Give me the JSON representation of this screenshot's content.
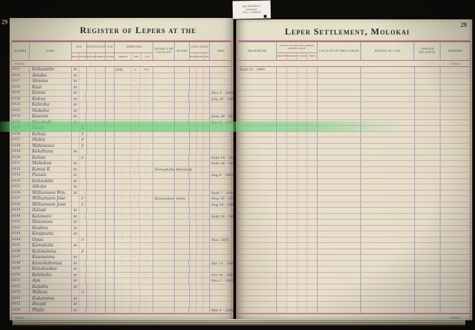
{
  "photo": {
    "left_page_number": "29",
    "right_page_number": "29",
    "archive_tab": {
      "lines": [
        "288 HANSEN'S",
        "DISEASE",
        "VOL. 2 SERIES"
      ]
    }
  },
  "colors": {
    "page_cream": "#e3decb",
    "rule_magenta": "#b34a78",
    "rule_pink": "#c96b86",
    "rule_blue": "#9a97c4",
    "ink": "#41445a",
    "stamp_blue": "#5c68a2",
    "highlight_green": "#60cd76"
  },
  "left_page": {
    "title": "Register of Lepers at the",
    "total_label": "TOTAL",
    "header": {
      "number": "NUMBER",
      "name": "NAME",
      "sex_label": "SEX",
      "sex_subs": [
        "MALE",
        "FEMALE"
      ],
      "nationality_label": "NATIONALITY",
      "nationality_subs": [
        "HAWAIIAN",
        "FOREIGNER"
      ],
      "age_label": "AGE",
      "age_subs": [
        "YEARS"
      ],
      "admitted_label": "ADMITTED",
      "admitted_subs": [
        "MONTH",
        "DAY",
        "A.D."
      ],
      "district": "DISTRICT OR LOCALITY",
      "island": "ISLAND",
      "civil_label": "CIVIL STATE",
      "civil_subs": [
        "MARRIED",
        "UNMARRIED",
        "NOT KNOWN"
      ],
      "died": "DIED"
    },
    "rows": [
      [
        "6115",
        "Kahaulelio",
        "M",
        "July",
        "22",
        "1891",
        "",
        "",
        ""
      ],
      [
        "6116",
        "Amaka",
        "M",
        "″",
        "″",
        "″",
        "",
        "",
        ""
      ],
      [
        "6117",
        "Simona",
        "M",
        "″",
        "″",
        "″",
        "",
        "",
        ""
      ],
      [
        "6118",
        "Kaai",
        "M",
        "″",
        "″",
        "″",
        "",
        "",
        ""
      ],
      [
        "6119",
        "Kamia",
        "M",
        "″",
        "″",
        "″",
        "",
        "",
        "Nov 5 - 1891"
      ],
      [
        "6120",
        "Kukua",
        "M",
        "″",
        "″",
        "″",
        "",
        "",
        "July 16 - 1891"
      ],
      [
        "6121",
        "Kaleoha",
        "M",
        "″",
        "″",
        "″",
        "",
        "",
        ""
      ],
      [
        "6122",
        "Makaha",
        "M",
        "″",
        "″",
        "″",
        "",
        "",
        ""
      ],
      [
        "6123",
        "Kaumai",
        "M",
        "″",
        "″",
        "″",
        "",
        "",
        "June 30 - 1891"
      ],
      [
        "6124",
        "Kauakahi",
        "M",
        "″",
        "″",
        "″",
        "",
        "",
        "Nov 6 - 1892"
      ],
      [
        "6125",
        "Nepii",
        "F",
        "″",
        "″",
        "″",
        "",
        "",
        ""
      ],
      [
        "6126",
        "Kahua",
        "F",
        "″",
        "″",
        "″",
        "",
        "",
        ""
      ],
      [
        "6127",
        "Makia",
        "F",
        "″",
        "″",
        "″",
        "",
        "",
        ""
      ],
      [
        "6128",
        "Wahinenui",
        "F",
        "″",
        "″",
        "″",
        "",
        "",
        ""
      ],
      [
        "6129",
        "Kekahuna",
        "M",
        "″",
        "″",
        "″",
        "",
        "",
        ""
      ],
      [
        "6130",
        "Kaluia",
        "F",
        "″",
        "″",
        "″",
        "",
        "",
        "Sept 14 - 1891"
      ],
      [
        "6131",
        "Makekau",
        "M",
        "″",
        "″",
        "″",
        "",
        "",
        "Sept 26 - 1891"
      ],
      [
        "6132",
        "Kamai K.",
        "M",
        "″",
        "″",
        "″",
        "Honuakaha",
        "Honolulu",
        ""
      ],
      [
        "6133",
        "Puaala",
        "M",
        "″",
        "″",
        "″",
        "",
        "",
        "Aug 9 - 1891"
      ],
      [
        "6134",
        "Kahoukiki",
        "M",
        "″",
        "″",
        "″",
        "",
        "",
        ""
      ],
      [
        "6135",
        "Aikake",
        "M",
        "″",
        "″",
        "″",
        "",
        "",
        ""
      ],
      [
        "6136",
        "Williamson Wm.",
        "M",
        "″",
        "″",
        "″",
        "",
        "",
        "Sept 7 - 1891"
      ],
      [
        "6137",
        "Williamson Jose",
        "F",
        "″",
        "″",
        "″",
        "Kawaiahao",
        "Oahu",
        "May 18 - 1889"
      ],
      [
        "6138",
        "Williamson Jane",
        "F",
        "″",
        "″",
        "″",
        "",
        "",
        "Aug 14 - 1891"
      ],
      [
        "6139",
        "Halapi",
        "M",
        "″",
        "″",
        "″",
        "",
        "",
        ""
      ],
      [
        "6140",
        "Kalawaia",
        "M",
        "″",
        "″",
        "″",
        "",
        "",
        "Sept 28 - 1891"
      ],
      [
        "6141",
        "Maunawa",
        "M",
        "″",
        "″",
        "″",
        "",
        "",
        ""
      ],
      [
        "6142",
        "Kaahea",
        "M",
        "″",
        "″",
        "″",
        "",
        "",
        ""
      ],
      [
        "6143",
        "Kaupauna",
        "M",
        "″",
        "″",
        "″",
        "",
        "",
        ""
      ],
      [
        "6144",
        "Opua",
        "F",
        "″",
        "″",
        "″",
        "",
        "",
        "Nov. 1891"
      ],
      [
        "6145",
        "Kamahala",
        "M",
        "″",
        "″",
        "″",
        "",
        "",
        ""
      ],
      [
        "6146",
        "Kahinahina",
        "F",
        "″",
        "″",
        "″",
        "",
        "",
        ""
      ],
      [
        "6147",
        "Kaumauna",
        "M",
        "″",
        "″",
        "″",
        "",
        "",
        ""
      ],
      [
        "6148",
        "Kamakahonua",
        "M",
        "″",
        "″",
        "″",
        "",
        "",
        "Apr 13 - 1893"
      ],
      [
        "6149",
        "Kanakaokai",
        "M",
        "″",
        "″",
        "″",
        "",
        "",
        ""
      ],
      [
        "6150",
        "Kelekolio",
        "M",
        "″",
        "″",
        "″",
        "",
        "",
        "Oct 16 - 1892"
      ],
      [
        "6151",
        "Apa",
        "M",
        "″",
        "″",
        "″",
        "",
        "",
        "Nov 2 - 1892"
      ],
      [
        "6152",
        "Kapahu",
        "M",
        "″",
        "″",
        "″",
        "",
        "",
        ""
      ],
      [
        "6153",
        "Wahine",
        "F",
        "″",
        "″",
        "″",
        "",
        "",
        ""
      ],
      [
        "6154",
        "Kukamana",
        "M",
        "″",
        "″",
        "″",
        "",
        "",
        ""
      ],
      [
        "6155",
        "Hoopii",
        "M",
        "″",
        "″",
        "″",
        "",
        "",
        ""
      ],
      [
        "6156",
        "Pilahi",
        "M",
        "″",
        "″",
        "″",
        "",
        "",
        "Mar 4 - 1892"
      ]
    ]
  },
  "right_page": {
    "title": "Leper Settlement, Molokai",
    "total_label": "TOTAL",
    "header": {
      "discharged": "DISCHARGED",
      "nature_label": "NATURE OF EARLIEST LEPROUS MANIFESTATION",
      "nature_subs": [
        "ANAESTHETIC",
        "NODULAR",
        "ULCERATIVE",
        "MIXED"
      ],
      "locality": "LOCALITY OF FIRST LESION",
      "history": "HISTORY OF CASE",
      "relatives": "LEPROUS RELATIVES",
      "remarks": "REMARKS"
    },
    "rows": [
      "Sept 22 - 1891",
      "",
      "",
      "",
      "",
      "",
      "",
      "",
      "",
      "",
      "",
      "",
      "",
      "",
      "",
      "",
      "",
      "",
      "",
      "",
      "",
      "",
      "",
      "",
      "",
      "",
      "",
      "",
      "",
      "",
      "",
      "",
      "",
      "",
      "",
      "",
      "",
      "",
      "",
      "",
      "",
      ""
    ]
  }
}
